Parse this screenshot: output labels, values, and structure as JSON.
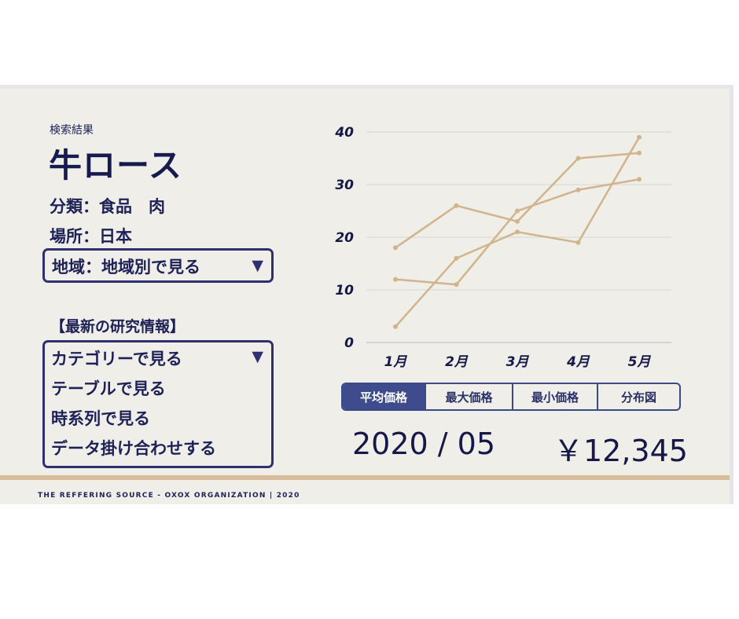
{
  "header": {
    "caption": "検索結果",
    "title": "牛ロース",
    "category": "分類：食品　肉",
    "place": "場所：日本"
  },
  "region_select": {
    "label": "地域：地域別で見る",
    "arrow_icon": "▼"
  },
  "research": {
    "heading": "【最新の研究情報】",
    "arrow_icon": "▼",
    "items": [
      "カテゴリーで見る",
      "テーブルで見る",
      "時系列で見る",
      "データ掛け合わせする"
    ]
  },
  "chart_data": {
    "type": "line",
    "categories": [
      "1月",
      "2月",
      "3月",
      "4月",
      "5月"
    ],
    "ylim": [
      0,
      40
    ],
    "yticks": [
      "0",
      "10",
      "20",
      "30",
      "40"
    ],
    "grid": true,
    "line_color": "#d2b48c",
    "series": [
      {
        "values": [
          18,
          26,
          23,
          35,
          36
        ]
      },
      {
        "values": [
          12,
          11,
          25,
          29,
          31
        ]
      },
      {
        "values": [
          3,
          16,
          21,
          19,
          39
        ]
      }
    ]
  },
  "tabs": [
    {
      "label": "平均価格",
      "active": true
    },
    {
      "label": "最大価格",
      "active": false
    },
    {
      "label": "最小価格",
      "active": false
    },
    {
      "label": "分布図",
      "active": false
    }
  ],
  "summary": {
    "date": "2020 / 05",
    "price": "￥12,345"
  },
  "footer": {
    "text": "THE REFFERING SOURCE - OXOX ORGANIZATION | 2020"
  },
  "colors": {
    "navy": "#1e2157",
    "accent": "#d2b48c",
    "tab_active": "#3e4b8c",
    "panel_bg": "#efeee8"
  }
}
